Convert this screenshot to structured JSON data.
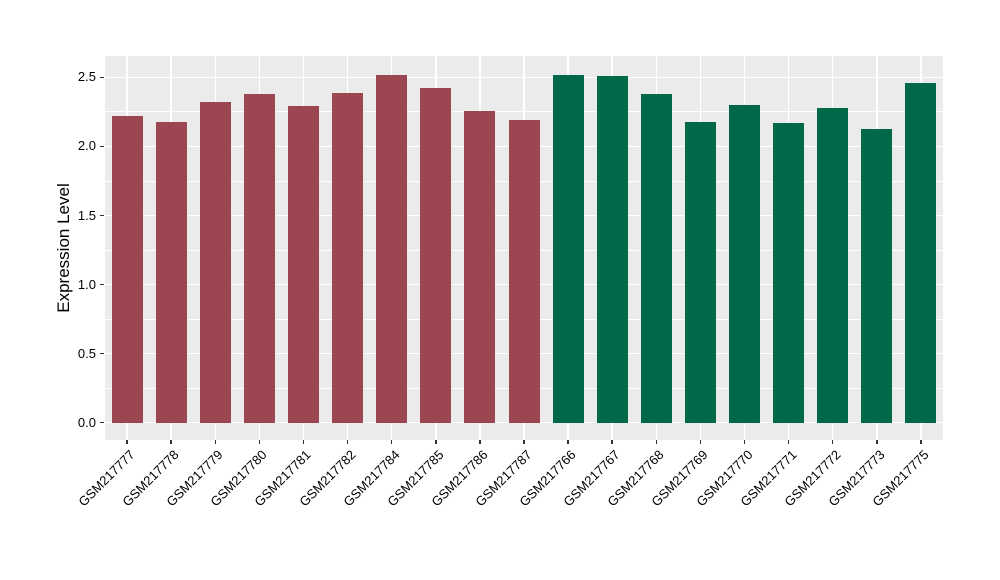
{
  "chart_data": {
    "type": "bar",
    "title": "",
    "xlabel": "",
    "ylabel": "Expression Level",
    "ylim": [
      -0.125,
      2.655
    ],
    "y_major_ticks": [
      0.0,
      0.5,
      1.0,
      1.5,
      2.0,
      2.5
    ],
    "y_major_tick_labels": [
      "0.0",
      "0.5",
      "1.0",
      "1.5",
      "2.0",
      "2.5"
    ],
    "y_minor_ticks": [
      0.25,
      0.75,
      1.25,
      1.75,
      2.25
    ],
    "grid": "white major and minor horizontal lines plus white vertical line per category on gray panel",
    "legend": "none",
    "groups": [
      {
        "name": "left-group",
        "color": "#9C4652"
      },
      {
        "name": "right-group",
        "color": "#01694A"
      }
    ],
    "categories": [
      "GSM217777",
      "GSM217778",
      "GSM217779",
      "GSM217780",
      "GSM217781",
      "GSM217782",
      "GSM217784",
      "GSM217785",
      "GSM217786",
      "GSM217787",
      "GSM217766",
      "GSM217767",
      "GSM217768",
      "GSM217769",
      "GSM217770",
      "GSM217771",
      "GSM217772",
      "GSM217773",
      "GSM217775"
    ],
    "values": [
      2.22,
      2.18,
      2.32,
      2.38,
      2.29,
      2.39,
      2.52,
      2.42,
      2.26,
      2.19,
      2.52,
      2.51,
      2.38,
      2.18,
      2.3,
      2.17,
      2.28,
      2.13,
      2.46
    ],
    "bar_groups": [
      0,
      0,
      0,
      0,
      0,
      0,
      0,
      0,
      0,
      0,
      1,
      1,
      1,
      1,
      1,
      1,
      1,
      1,
      1
    ]
  },
  "style": {
    "panel_bg": "#EBEBEB",
    "grid_color": "#FFFFFF",
    "tick_color": "#333333",
    "text_color": "#000000",
    "background": "#FFFFFF"
  }
}
